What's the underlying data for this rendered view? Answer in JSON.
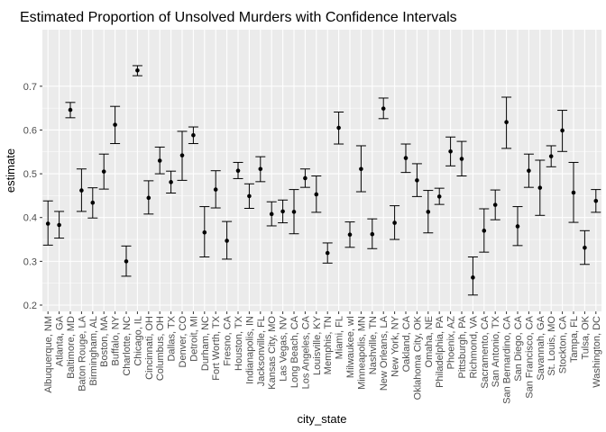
{
  "chart_data": {
    "type": "scatter",
    "subtype": "point-with-errorbars",
    "title": "Estimated Proportion of Unsolved Murders with Confidence Intervals",
    "xlabel": "city_state",
    "ylabel": "estimate",
    "ylim": [
      0.2,
      0.75
    ],
    "yticks": [
      "0.2",
      "0.3",
      "0.4",
      "0.5",
      "0.6",
      "0.7"
    ],
    "grid": true,
    "background": "#ebebeb",
    "gridline_color": "#ffffff",
    "point_color": "#000000",
    "categories": [
      "Albuquerque, NM",
      "Atlanta, GA",
      "Baltimore, MD",
      "Baton Rouge, LA",
      "Birmingham, AL",
      "Boston, MA",
      "Buffalo, NY",
      "Charlotte, NC",
      "Chicago, IL",
      "Cincinnati, OH",
      "Columbus, OH",
      "Dallas, TX",
      "Denver, CO",
      "Detroit, MI",
      "Durham, NC",
      "Fort Worth, TX",
      "Fresno, CA",
      "Houston, TX",
      "Indianapolis, IN",
      "Jacksonville, FL",
      "Kansas City, MO",
      "Las Vegas, NV",
      "Long Beach, CA",
      "Los Angeles, CA",
      "Louisville, KY",
      "Memphis, TN",
      "Miami, FL",
      "Milwaukee, wI",
      "Minneapolis, MN",
      "Nashville, TN",
      "New Orleans, LA",
      "New York, NY",
      "Oakland, CA",
      "Oklahoma City, OK",
      "Omaha, NE",
      "Philadelphia, PA",
      "Phoenix, AZ",
      "Pittsburgh, PA",
      "Richmond, VA",
      "Sacramento, CA",
      "San Antonio, TX",
      "San Bernardino, CA",
      "San Diego, CA",
      "San Francisco, CA",
      "Savannah, GA",
      "St. Louis, MO",
      "Stockton, CA",
      "Tampa, FL",
      "Tulsa, OK",
      "Washington, DC"
    ],
    "estimate": [
      0.386,
      0.383,
      0.646,
      0.462,
      0.434,
      0.505,
      0.612,
      0.3,
      0.736,
      0.445,
      0.53,
      0.481,
      0.542,
      0.588,
      0.366,
      0.464,
      0.347,
      0.507,
      0.449,
      0.511,
      0.408,
      0.414,
      0.413,
      0.49,
      0.453,
      0.319,
      0.605,
      0.361,
      0.511,
      0.362,
      0.649,
      0.388,
      0.536,
      0.485,
      0.413,
      0.448,
      0.551,
      0.534,
      0.263,
      0.37,
      0.429,
      0.618,
      0.38,
      0.507,
      0.468,
      0.54,
      0.599,
      0.457,
      0.331,
      0.438
    ],
    "ci_low": [
      0.337,
      0.353,
      0.628,
      0.414,
      0.399,
      0.465,
      0.569,
      0.266,
      0.724,
      0.408,
      0.5,
      0.456,
      0.485,
      0.569,
      0.31,
      0.422,
      0.305,
      0.489,
      0.421,
      0.482,
      0.381,
      0.388,
      0.363,
      0.469,
      0.412,
      0.296,
      0.568,
      0.332,
      0.459,
      0.329,
      0.626,
      0.35,
      0.503,
      0.448,
      0.365,
      0.43,
      0.518,
      0.495,
      0.223,
      0.321,
      0.395,
      0.558,
      0.336,
      0.469,
      0.405,
      0.516,
      0.551,
      0.389,
      0.293,
      0.412
    ],
    "ci_high": [
      0.438,
      0.414,
      0.663,
      0.511,
      0.468,
      0.545,
      0.654,
      0.335,
      0.747,
      0.484,
      0.561,
      0.506,
      0.597,
      0.607,
      0.425,
      0.507,
      0.391,
      0.526,
      0.477,
      0.539,
      0.436,
      0.44,
      0.464,
      0.511,
      0.495,
      0.342,
      0.641,
      0.39,
      0.564,
      0.397,
      0.673,
      0.427,
      0.568,
      0.523,
      0.462,
      0.467,
      0.584,
      0.574,
      0.31,
      0.42,
      0.463,
      0.675,
      0.425,
      0.545,
      0.531,
      0.564,
      0.645,
      0.526,
      0.37,
      0.464
    ]
  }
}
